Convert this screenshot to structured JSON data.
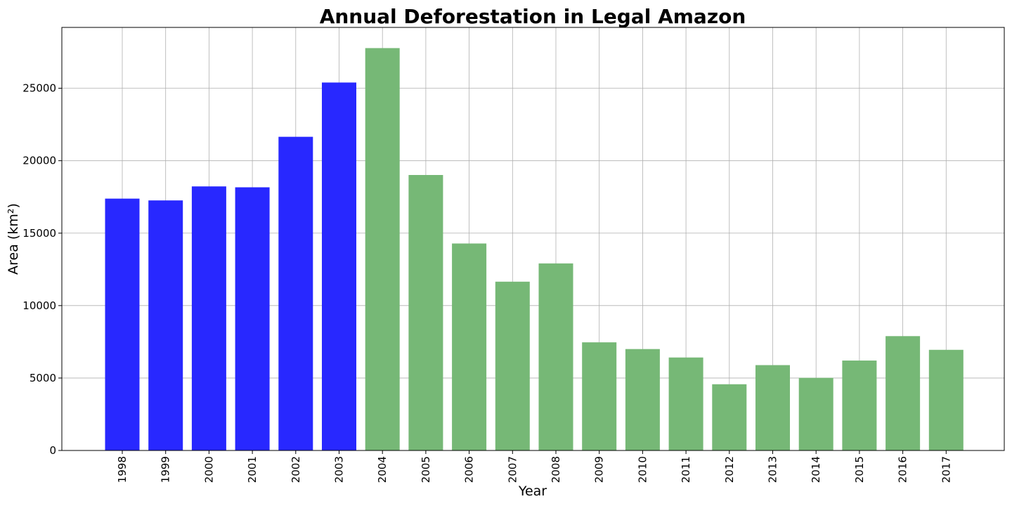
{
  "chart_data": {
    "type": "bar",
    "title": "Annual Deforestation in Legal Amazon",
    "xlabel": "Year",
    "ylabel": "Area (km²)",
    "categories": [
      "1998",
      "1999",
      "2000",
      "2001",
      "2002",
      "2003",
      "2004",
      "2005",
      "2006",
      "2007",
      "2008",
      "2009",
      "2010",
      "2011",
      "2012",
      "2013",
      "2014",
      "2015",
      "2016",
      "2017"
    ],
    "values": [
      17383,
      17259,
      18226,
      18165,
      21650,
      25396,
      27772,
      19014,
      14286,
      11651,
      12911,
      7464,
      7000,
      6418,
      4571,
      5891,
      5012,
      6207,
      7893,
      6947
    ],
    "bar_colors": [
      "#2828ff",
      "#2828ff",
      "#2828ff",
      "#2828ff",
      "#2828ff",
      "#2828ff",
      "#76b876",
      "#76b876",
      "#76b876",
      "#76b876",
      "#76b876",
      "#76b876",
      "#76b876",
      "#76b876",
      "#76b876",
      "#76b876",
      "#76b876",
      "#76b876",
      "#76b876",
      "#76b876"
    ],
    "ylim": [
      0,
      29200
    ],
    "yticks": [
      0,
      5000,
      10000,
      15000,
      20000,
      25000
    ],
    "grid": true,
    "legend": "none",
    "colors": {
      "early_bars": "#2828ff",
      "late_bars": "#76b876",
      "grid": "#b0b0b0"
    }
  }
}
